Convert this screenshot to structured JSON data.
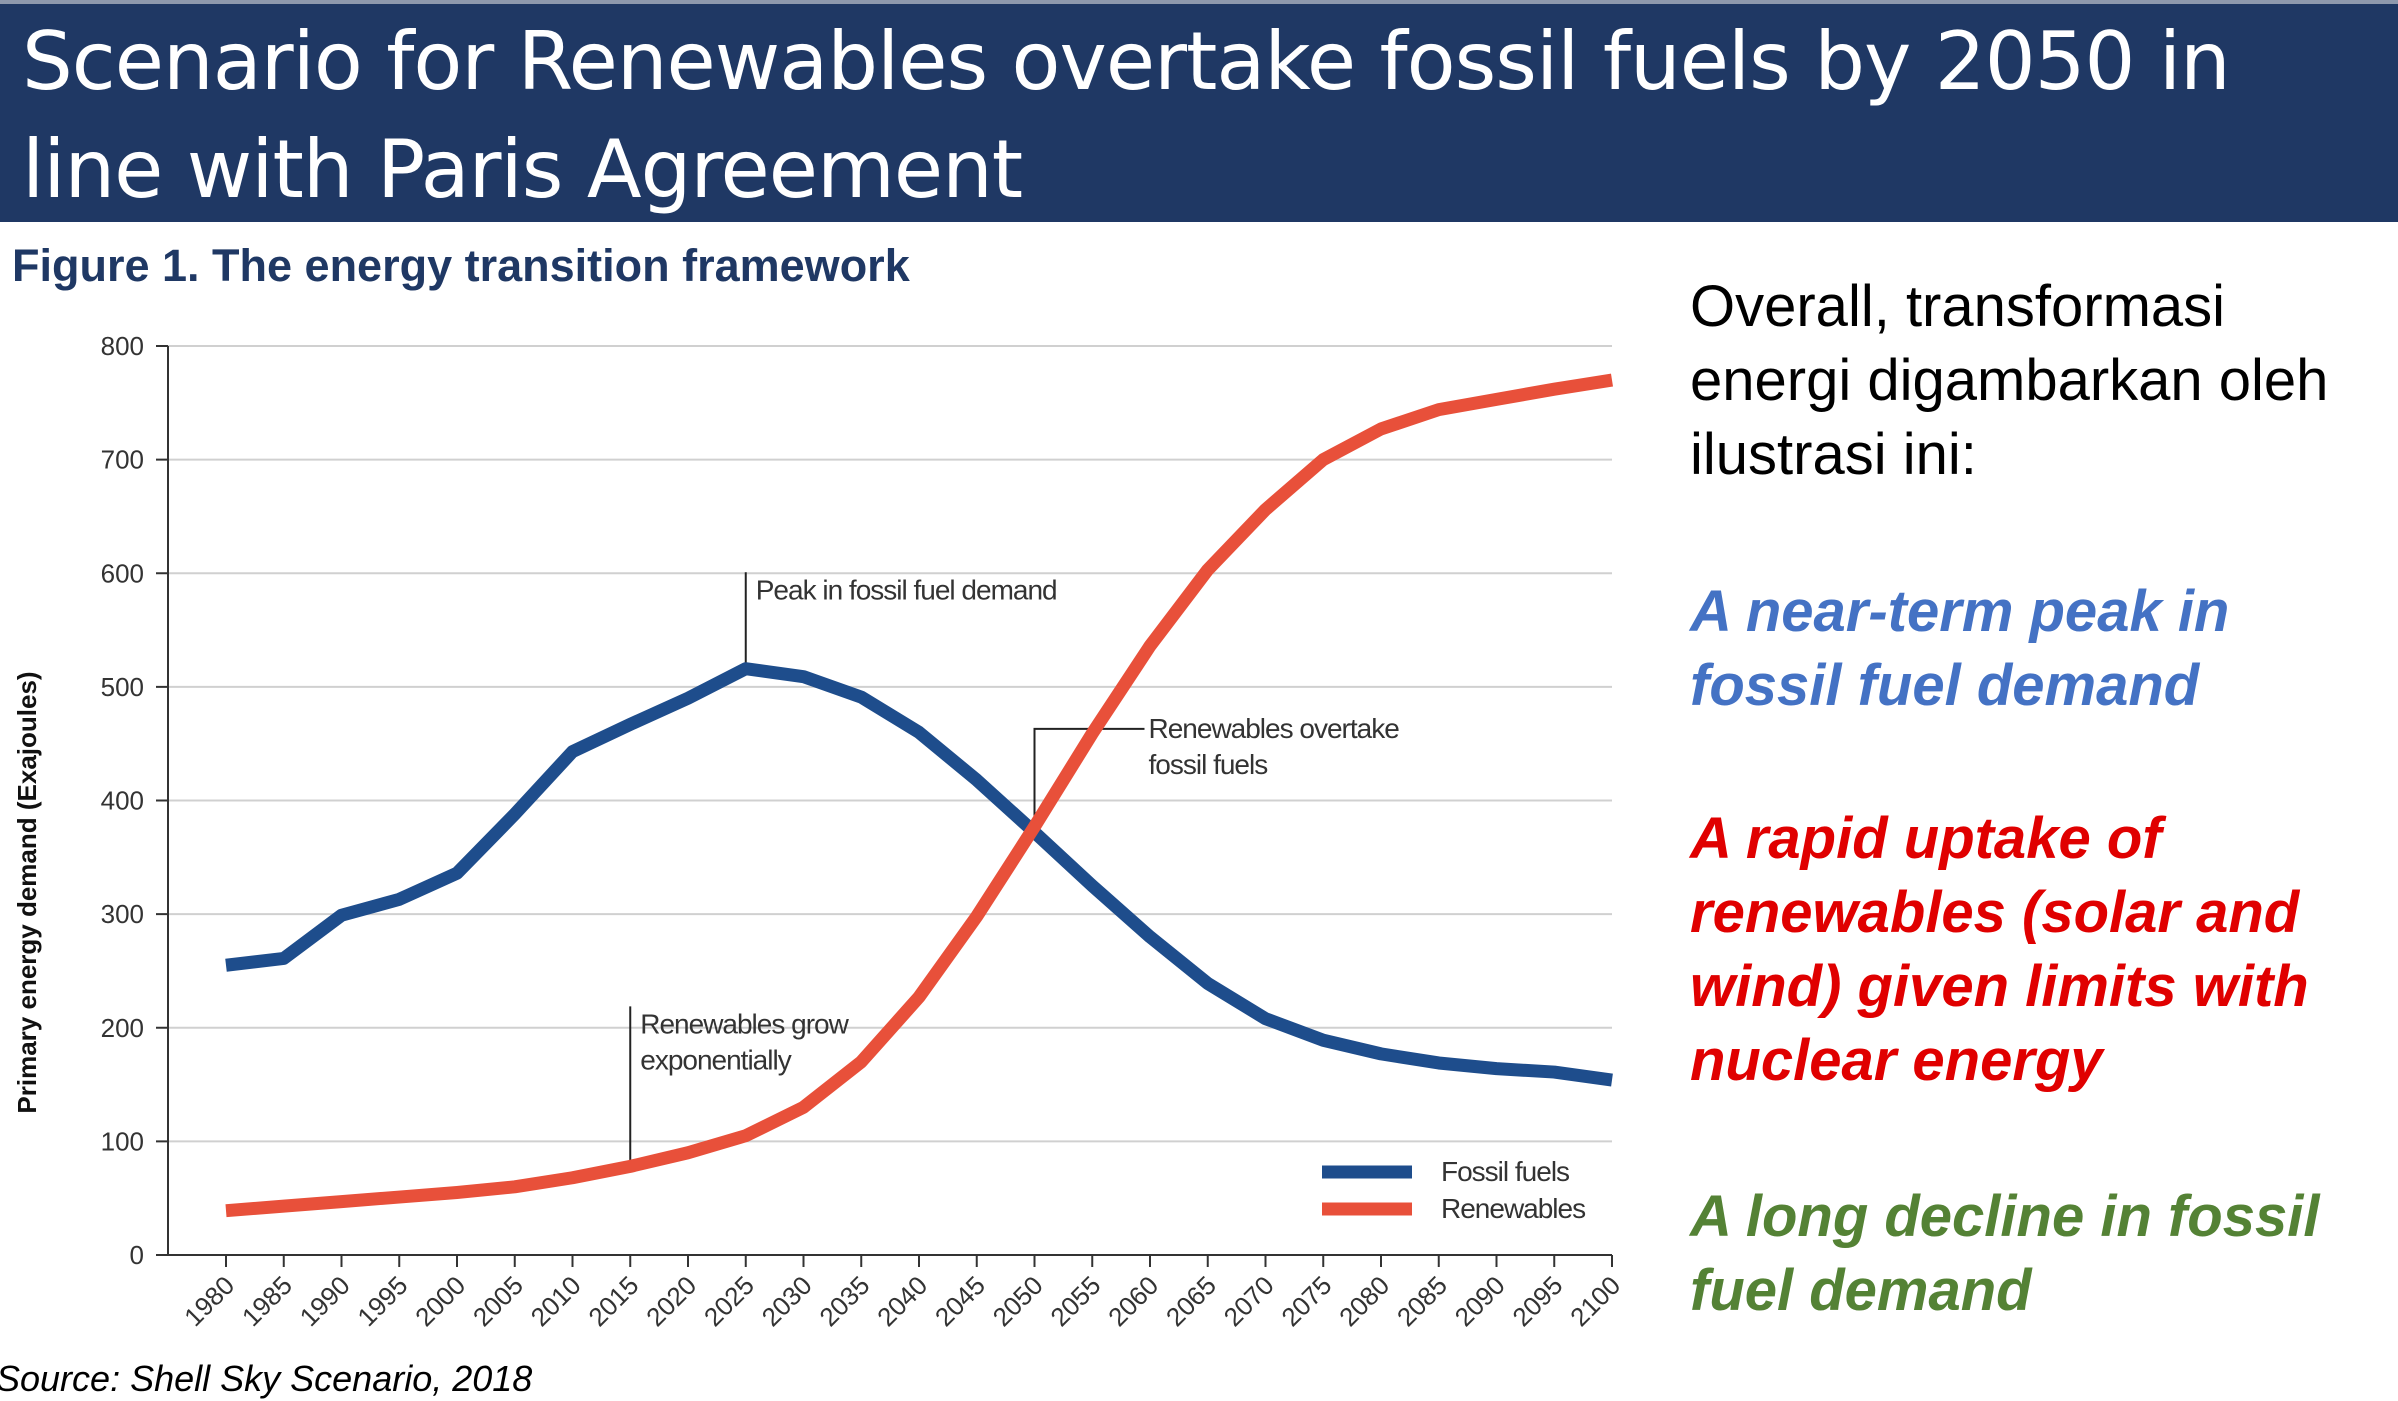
{
  "slide": {
    "title": "Scenario for Renewables overtake fossil fuels by 2050 in line with Paris Agreement",
    "source": "Source: Shell Sky Scenario, 2018"
  },
  "colors": {
    "title_bar": "#1f3864",
    "fossil": "#1e4d8c",
    "renewables": "#e8503a",
    "point1": "#4472c4",
    "point2": "#e00000",
    "point3": "#548235"
  },
  "side": {
    "overall": "Overall, transformasi energi digambarkan oleh ilustrasi ini:",
    "point1": "A near-term peak in fossil fuel demand",
    "point2": "A rapid uptake of renewables (solar and wind) given limits with nuclear energy",
    "point3": "A long decline in fossil fuel demand"
  },
  "chart_data": {
    "type": "line",
    "title": "Figure 1. The energy transition framework",
    "ylabel": "Primary energy demand (Exajoules)",
    "xlabel": "",
    "ylim": [
      0,
      800
    ],
    "yticks": [
      0,
      100,
      200,
      300,
      400,
      500,
      600,
      700,
      800
    ],
    "grid": true,
    "legend_position": "bottom-right",
    "x": [
      1980,
      1985,
      1990,
      1995,
      2000,
      2005,
      2010,
      2015,
      2020,
      2025,
      2030,
      2035,
      2040,
      2045,
      2050,
      2055,
      2060,
      2065,
      2070,
      2075,
      2080,
      2085,
      2090,
      2095,
      2100
    ],
    "series": [
      {
        "name": "Fossil fuels",
        "values": [
          255,
          261,
          299,
          313,
          336,
          388,
          443,
          467,
          490,
          516,
          509,
          491,
          460,
          418,
          372,
          325,
          280,
          239,
          208,
          189,
          177,
          169,
          164,
          161,
          154
        ]
      },
      {
        "name": "Renewables",
        "values": [
          39,
          43,
          47,
          51,
          55,
          60,
          68,
          78,
          90,
          105,
          130,
          170,
          227,
          298,
          377,
          459,
          536,
          603,
          656,
          700,
          727,
          744,
          753,
          762,
          770
        ]
      }
    ],
    "annotations": [
      {
        "x": 2025,
        "y": 516,
        "label_y": 585,
        "text": [
          "Peak in fossil fuel demand"
        ]
      },
      {
        "x": 2050,
        "y": 372,
        "label_y": 463,
        "text": [
          "Renewables overtake",
          "fossil fuels"
        ]
      },
      {
        "x": 2015,
        "y": 78,
        "label_y": 203,
        "text": [
          "Renewables grow",
          "exponentially"
        ]
      }
    ]
  }
}
